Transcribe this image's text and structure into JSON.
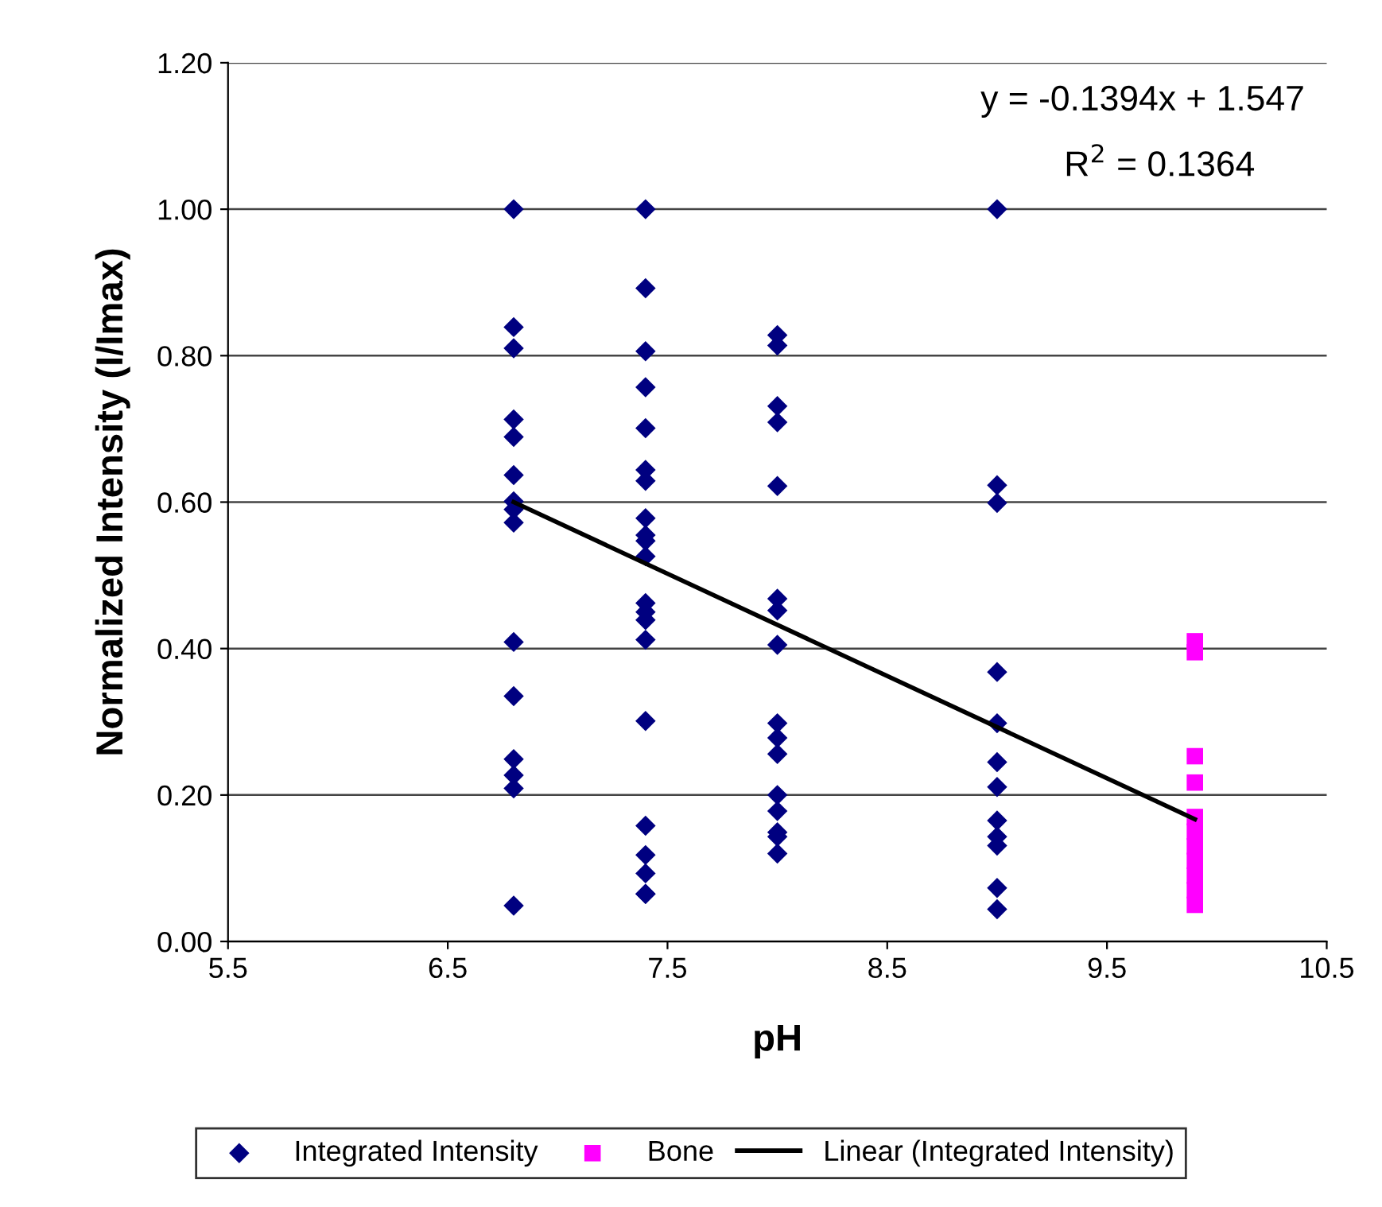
{
  "chart_data": {
    "type": "scatter",
    "xlabel": "pH",
    "ylabel": "Normalized Intensity (I/Imax)",
    "xlim": [
      5.5,
      10.5
    ],
    "xticks": [
      5.5,
      6.5,
      7.5,
      8.5,
      9.5,
      10.5
    ],
    "ylim": [
      0,
      1.2
    ],
    "yticks": [
      {
        "value": 0,
        "label": "0.00"
      },
      {
        "value": 0.2,
        "label": "0.20"
      },
      {
        "value": 0.4,
        "label": "0.40"
      },
      {
        "value": 0.6,
        "label": "0.60"
      },
      {
        "value": 0.8,
        "label": "0.80"
      },
      {
        "value": 1.0,
        "label": "1.00"
      },
      {
        "value": 1.2,
        "label": "1.20"
      }
    ],
    "grid": "y",
    "legend": "bottom",
    "annotations": [
      "y = -0.1394x + 1.547",
      "R$^{2}$ = 0.1364"
    ],
    "series": [
      {
        "name": "Integrated Intensity",
        "marker": "diamond",
        "color": "#000080",
        "x": [
          6.8,
          6.8,
          6.8,
          6.8,
          6.8,
          6.8,
          6.8,
          6.8,
          6.8,
          6.8,
          6.8,
          6.8,
          6.8,
          6.8,
          6.8,
          7.4,
          7.4,
          7.4,
          7.4,
          7.4,
          7.4,
          7.4,
          7.4,
          7.4,
          7.4,
          7.4,
          7.4,
          7.4,
          7.4,
          7.4,
          7.4,
          7.4,
          7.4,
          7.4,
          7.4,
          7.4,
          8.0,
          8.0,
          8.0,
          8.0,
          8.0,
          8.0,
          8.0,
          8.0,
          8.0,
          8.0,
          8.0,
          8.0,
          8.0,
          8.0,
          8.0,
          8.0,
          9.0,
          9.0,
          9.0,
          9.0,
          9.0,
          9.0,
          9.0,
          9.0,
          9.0,
          9.0,
          9.0,
          9.0
        ],
        "values": [
          1.0,
          0.839,
          0.81,
          0.713,
          0.689,
          0.637,
          0.601,
          0.59,
          0.572,
          0.409,
          0.335,
          0.249,
          0.227,
          0.209,
          0.049,
          1.0,
          0.892,
          0.806,
          0.757,
          0.701,
          0.644,
          0.629,
          0.578,
          0.555,
          0.547,
          0.526,
          0.462,
          0.45,
          0.439,
          0.412,
          0.301,
          0.158,
          0.118,
          0.093,
          0.065,
          0.065,
          0.828,
          0.814,
          0.731,
          0.709,
          0.622,
          0.468,
          0.452,
          0.405,
          0.298,
          0.278,
          0.256,
          0.2,
          0.178,
          0.149,
          0.143,
          0.12,
          1.0,
          0.623,
          0.599,
          0.368,
          0.298,
          0.245,
          0.211,
          0.165,
          0.143,
          0.131,
          0.073,
          0.044
        ]
      },
      {
        "name": "Bone",
        "marker": "square",
        "color": "#ff00ff",
        "x": [
          9.9,
          9.9,
          9.9,
          9.9,
          9.9,
          9.9,
          9.9,
          9.9,
          9.9,
          9.9,
          9.9
        ],
        "values": [
          0.41,
          0.395,
          0.253,
          0.217,
          0.17,
          0.15,
          0.13,
          0.11,
          0.09,
          0.07,
          0.05
        ]
      },
      {
        "name": "Linear (Integrated Intensity)",
        "type": "line",
        "marker": "none",
        "line_style": "solid",
        "color": "#000000",
        "x": [
          6.8,
          9.9
        ],
        "values": [
          0.6,
          0.167
        ]
      }
    ]
  }
}
